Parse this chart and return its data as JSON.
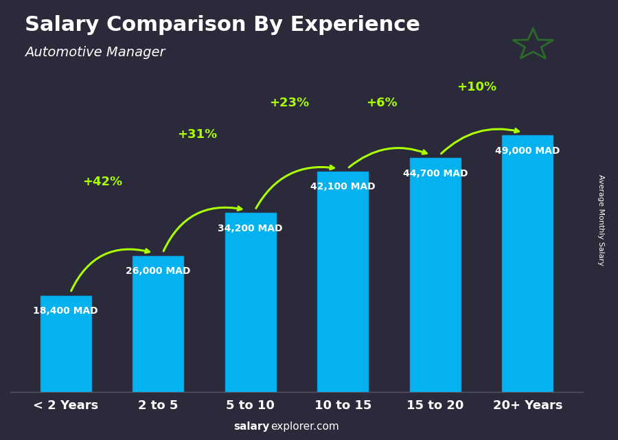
{
  "title": "Salary Comparison By Experience",
  "subtitle": "Automotive Manager",
  "categories": [
    "< 2 Years",
    "2 to 5",
    "5 to 10",
    "10 to 15",
    "15 to 20",
    "20+ Years"
  ],
  "values": [
    18400,
    26000,
    34200,
    42100,
    44700,
    49000
  ],
  "labels": [
    "18,400 MAD",
    "26,000 MAD",
    "34,200 MAD",
    "42,100 MAD",
    "44,700 MAD",
    "49,000 MAD"
  ],
  "pct_changes": [
    "+42%",
    "+31%",
    "+23%",
    "+6%",
    "+10%"
  ],
  "bar_color": "#00BFFF",
  "bar_edge_color": "#00AAEE",
  "pct_color": "#AAFF00",
  "label_color": "#FFFFFF",
  "title_color": "#FFFFFF",
  "subtitle_color": "#FFFFFF",
  "bg_color": "#2a2a3a",
  "footer_bold": "salary",
  "footer_normal": "explorer.com",
  "ylabel": "Average Monthly Salary",
  "ylim": [
    0,
    62000
  ],
  "bar_width": 0.55,
  "flag_red": "#e8474b",
  "flag_green": "#2a6b2a",
  "star_outer_r": 0.3,
  "star_inner_r": 0.12
}
